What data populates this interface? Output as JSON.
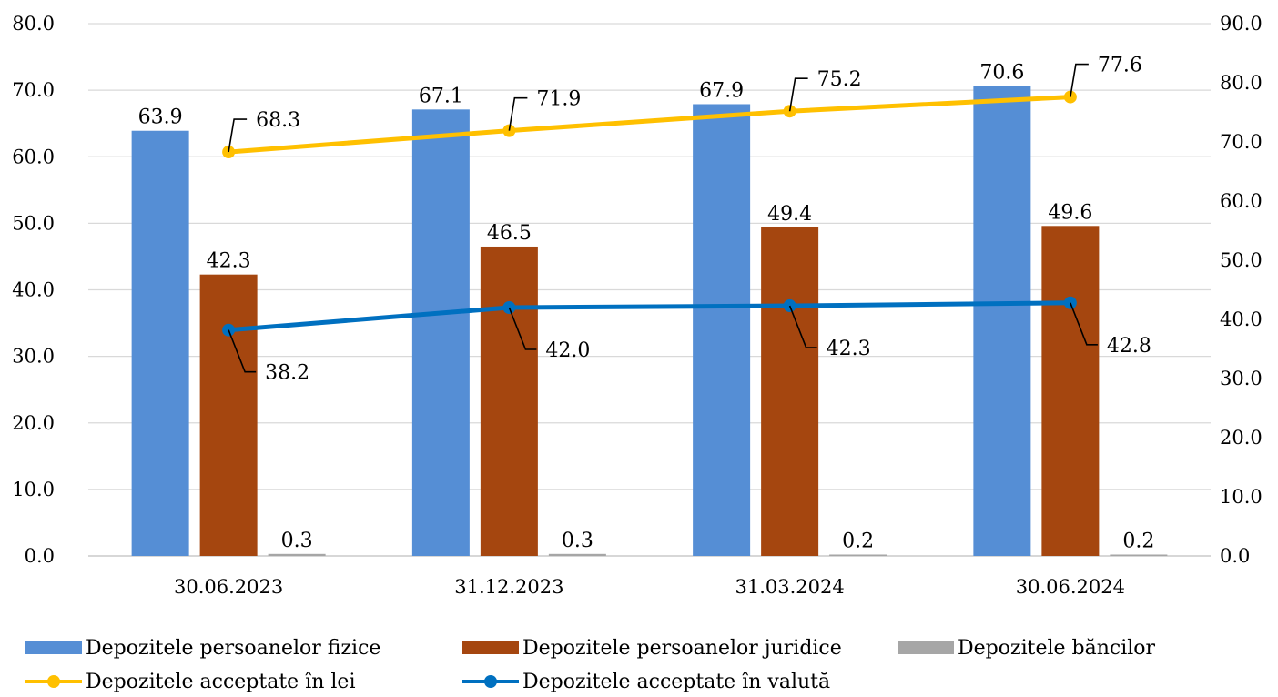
{
  "chart_data": {
    "type": "bar",
    "categories": [
      "30.06.2023",
      "31.12.2023",
      "31.03.2024",
      "30.06.2024"
    ],
    "y_left": {
      "min": 0,
      "max": 80,
      "step": 10,
      "ticks": [
        "0.0",
        "10.0",
        "20.0",
        "30.0",
        "40.0",
        "50.0",
        "60.0",
        "70.0",
        "80.0"
      ]
    },
    "y_right": {
      "min": 0,
      "max": 90,
      "step": 10,
      "ticks": [
        "0.0",
        "10.0",
        "20.0",
        "30.0",
        "40.0",
        "50.0",
        "60.0",
        "70.0",
        "80.0",
        "90.0"
      ]
    },
    "grid": true,
    "legend_position": "bottom",
    "series": [
      {
        "name": "Depozitele persoanelor fizice",
        "kind": "bar",
        "axis": "left",
        "color": "#558ED5",
        "values": [
          63.9,
          67.1,
          67.9,
          70.6
        ],
        "labels": [
          "63.9",
          "67.1",
          "67.9",
          "70.6"
        ]
      },
      {
        "name": "Depozitele persoanelor juridice",
        "kind": "bar",
        "axis": "left",
        "color": "#A5460F",
        "values": [
          42.3,
          46.5,
          49.4,
          49.6
        ],
        "labels": [
          "42.3",
          "46.5",
          "49.4",
          "49.6"
        ]
      },
      {
        "name": "Depozitele băncilor",
        "kind": "bar",
        "axis": "left",
        "color": "#A6A6A6",
        "values": [
          0.3,
          0.3,
          0.2,
          0.2
        ],
        "labels": [
          "0.3",
          "0.3",
          "0.2",
          "0.2"
        ]
      },
      {
        "name": "Depozitele acceptate în lei",
        "kind": "line",
        "axis": "right",
        "color": "#FFC000",
        "values": [
          68.3,
          71.9,
          75.2,
          77.6
        ],
        "labels": [
          "68.3",
          "71.9",
          "75.2",
          "77.6"
        ]
      },
      {
        "name": "Depozitele acceptate în valută",
        "kind": "line",
        "axis": "right",
        "color": "#0070C0",
        "values": [
          38.2,
          42.0,
          42.3,
          42.8
        ],
        "labels": [
          "38.2",
          "42.0",
          "42.3",
          "42.8"
        ]
      }
    ]
  }
}
